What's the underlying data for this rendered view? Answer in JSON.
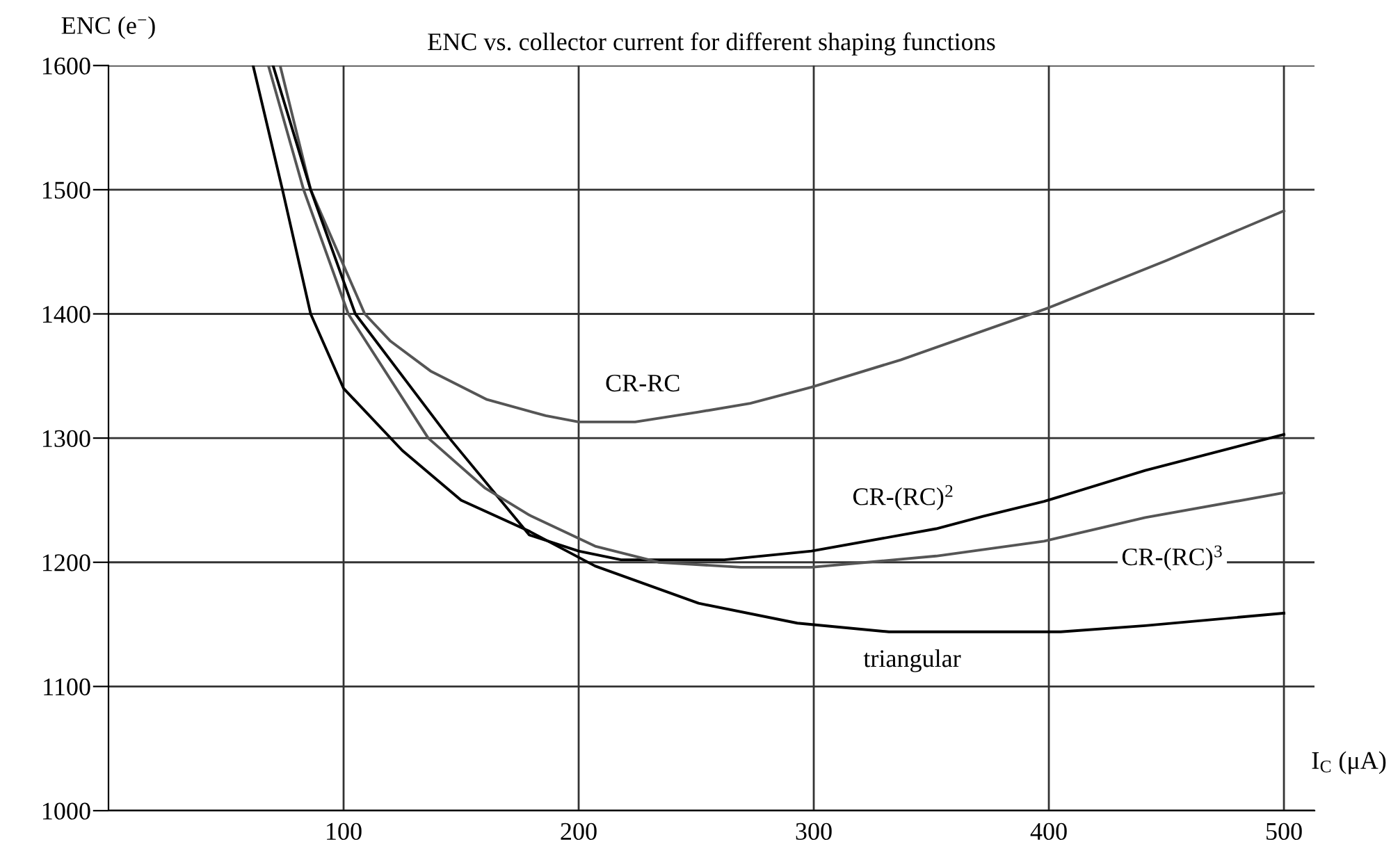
{
  "chart_data": {
    "type": "line",
    "title": "ENC vs. collector current for different shaping functions",
    "ylabel": "ENC (e$^{−}$)",
    "xlabel": "I$_{C}$ (μA)",
    "xlim": [
      0,
      513
    ],
    "ylim": [
      1000,
      1600
    ],
    "xticks": [
      100,
      200,
      300,
      400,
      500
    ],
    "yticks": [
      1000,
      1100,
      1200,
      1300,
      1400,
      1500,
      1600
    ],
    "grid": true,
    "legend": false,
    "marker": "none",
    "line_style": "solid",
    "series": [
      {
        "name": "CR-RC",
        "color": "#555555",
        "x": [
          73,
          86,
          109,
          120,
          137,
          161,
          186,
          200,
          224,
          251,
          273,
          299,
          337,
          400,
          450,
          500
        ],
        "values": [
          1600,
          1500,
          1400,
          1378,
          1354,
          1331,
          1318,
          1313,
          1313,
          1321,
          1328,
          1341,
          1363,
          1405,
          1443,
          1483
        ]
      },
      {
        "name": "CR-(RC)$^{2}$",
        "color": "#000000",
        "x": [
          70,
          86,
          105,
          145,
          179,
          200,
          218,
          262,
          299,
          352,
          372,
          398,
          441,
          500
        ],
        "values": [
          1600,
          1500,
          1400,
          1300,
          1222,
          1209,
          1202,
          1202,
          1209,
          1227,
          1237,
          1249,
          1274,
          1303
        ]
      },
      {
        "name": "CR-(RC)$^{3}$",
        "color": "#555555",
        "x": [
          68,
          83,
          102,
          136,
          160,
          179,
          207,
          234,
          269,
          299,
          352,
          398,
          441,
          500
        ],
        "values": [
          1600,
          1500,
          1400,
          1300,
          1260,
          1238,
          1213,
          1200,
          1196,
          1196,
          1205,
          1217,
          1236,
          1256
        ]
      },
      {
        "name": "triangular",
        "color": "#000000",
        "x": [
          61.5,
          74,
          86,
          100,
          125,
          150,
          179,
          207,
          251,
          293,
          332,
          405,
          441,
          500
        ],
        "values": [
          1600,
          1500,
          1400,
          1340,
          1290,
          1250,
          1225,
          1197,
          1167,
          1151,
          1144,
          1144,
          1149,
          1159
        ]
      }
    ]
  }
}
